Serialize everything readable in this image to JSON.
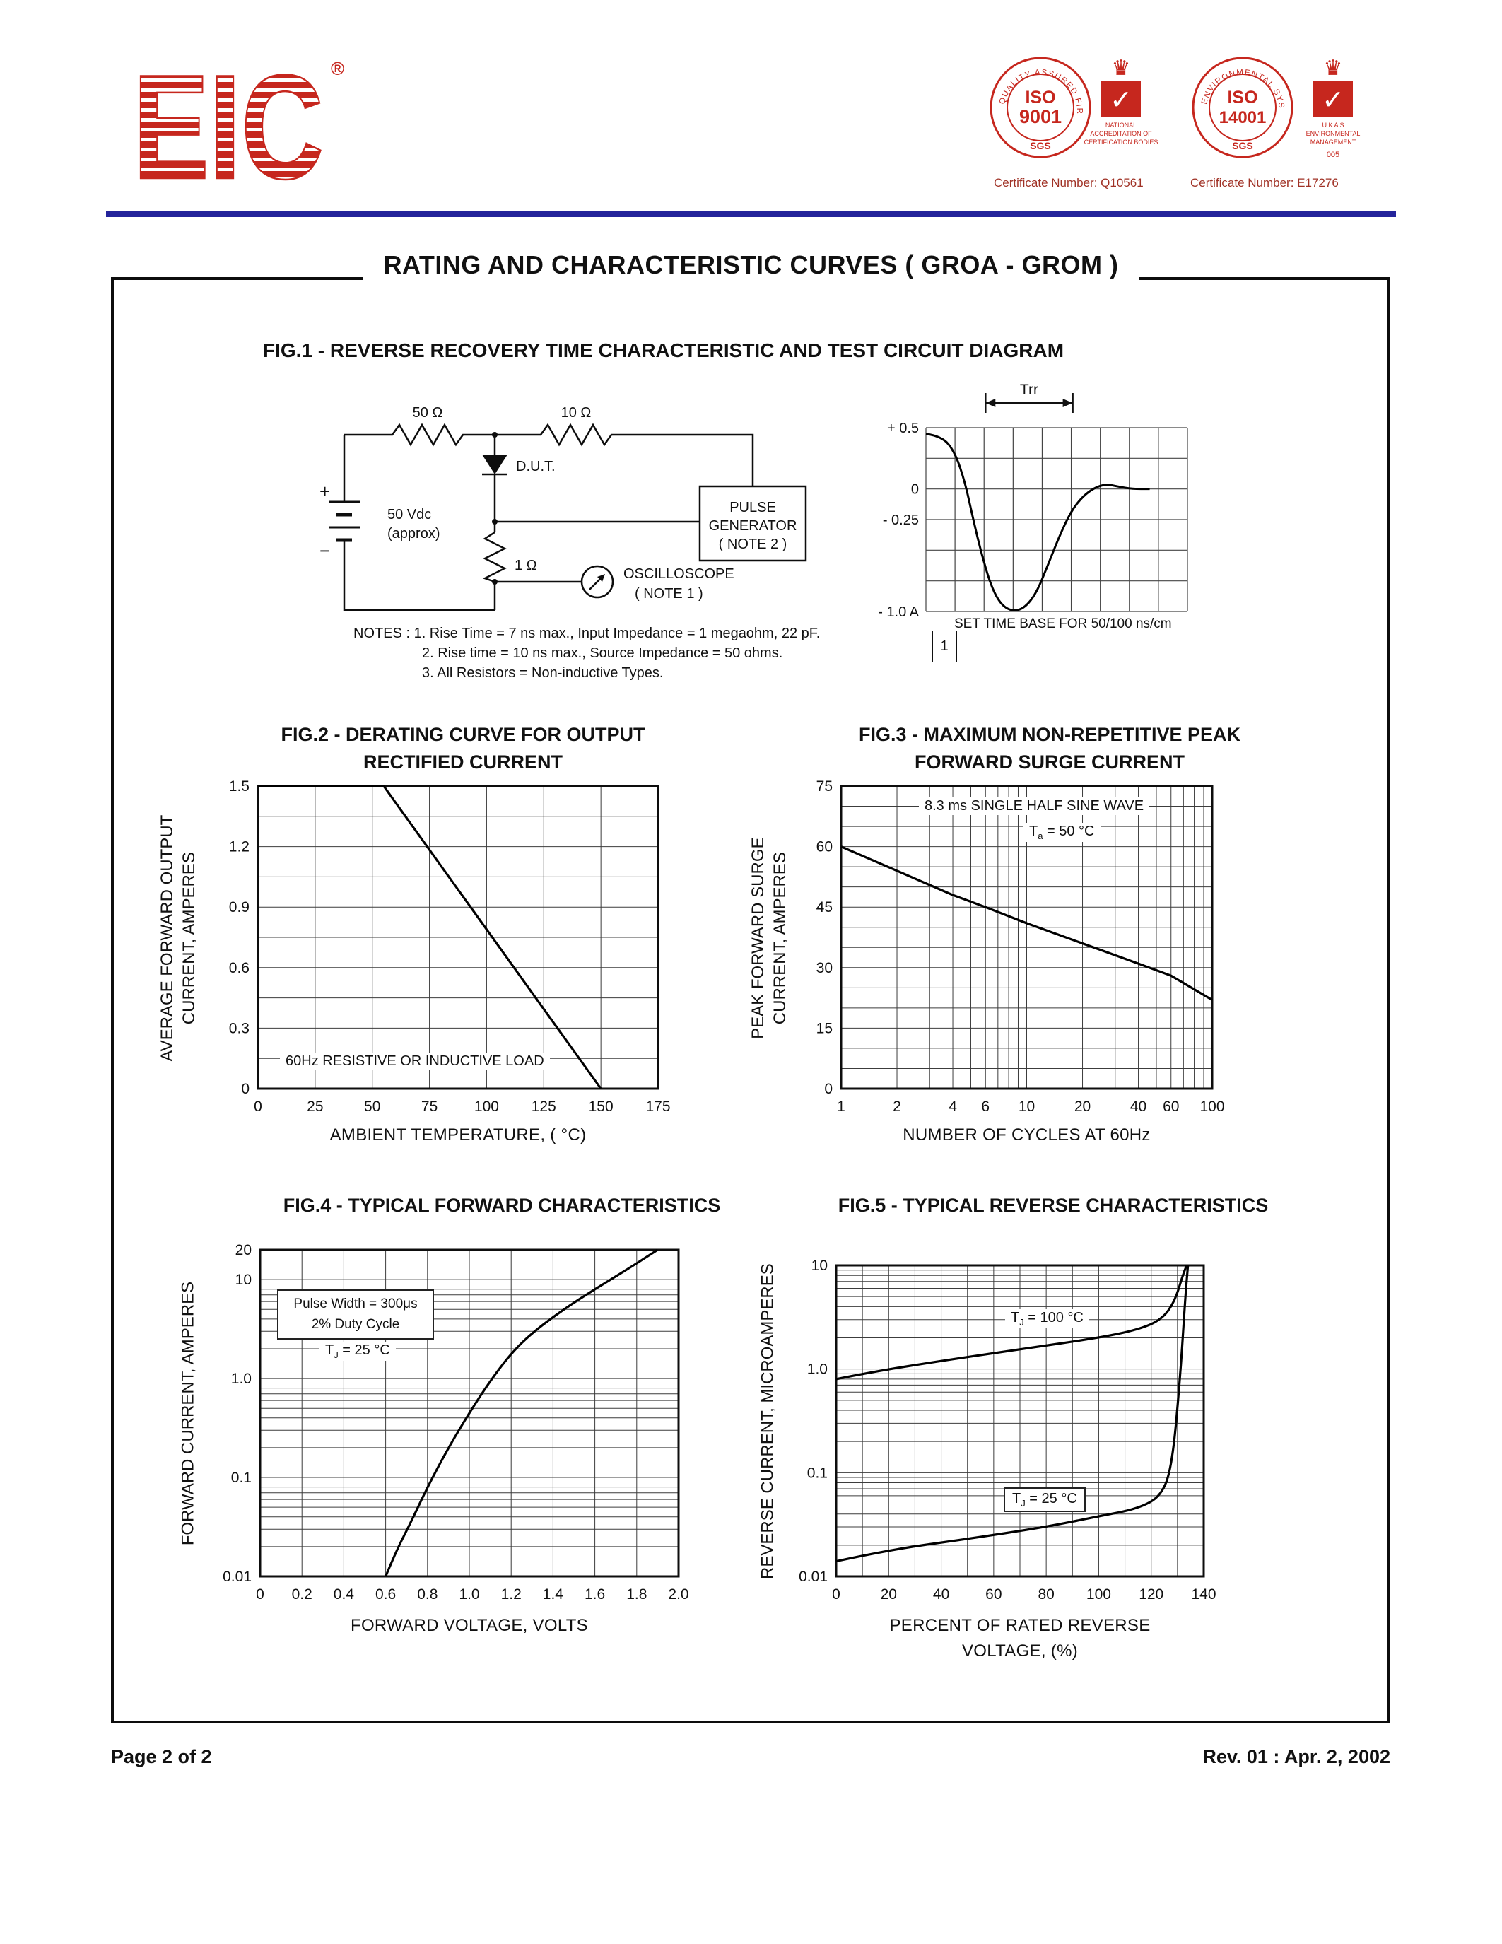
{
  "page": {
    "title": "RATING AND CHARACTERISTIC CURVES  ( GROA - GROM )",
    "footer_left": "Page 2 of 2",
    "footer_right": "Rev. 01 : Apr. 2, 2002"
  },
  "header": {
    "logo_text": "EIC",
    "logo_registered": "®",
    "accent_color": "#c6271e",
    "divider_color": "#24249b",
    "badges": [
      {
        "ring_text": "QUALITY ASSURED FIRM",
        "iso": "ISO",
        "number": "9001",
        "org": "SGS",
        "crown": "♛",
        "check": "✓",
        "side_lines": [
          "NATIONAL",
          "ACCREDITATION OF",
          "CERTIFICATION BODIES"
        ],
        "cert": "Certificate Number: Q10561"
      },
      {
        "ring_text": "ENVIRONMENTAL SYSTEM",
        "iso": "ISO",
        "number": "14001",
        "org": "SGS",
        "crown": "♛",
        "check": "✓",
        "side_lines": [
          "U K A S",
          "ENVIRONMENTAL",
          "MANAGEMENT"
        ],
        "foot": "005",
        "cert": "Certificate Number: E17276"
      }
    ]
  },
  "fig1": {
    "title": "FIG.1 - REVERSE RECOVERY TIME CHARACTERISTIC AND TEST CIRCUIT DIAGRAM",
    "circuit": {
      "r_source": "50 Ω",
      "r_series": "10 Ω",
      "dut": "D.U.T.",
      "supply_plus": "+",
      "supply_minus": "−",
      "supply_v": "50 Vdc",
      "supply_approx": "(approx)",
      "r_sense": "1 Ω",
      "scope_line1": "OSCILLOSCOPE",
      "scope_line2": "( NOTE 1 )",
      "pulse_line1": "PULSE",
      "pulse_line2": "GENERATOR",
      "pulse_line3": "( NOTE 2 )"
    },
    "notes": [
      "NOTES :  1. Rise Time = 7 ns max., Input Impedance = 1 megaohm, 22 pF.",
      "2. Rise time = 10 ns max., Source Impedance = 50 ohms.",
      "3. All Resistors = Non-inductive Types."
    ],
    "waveform": {
      "trr_label": "Trr",
      "trr_span": [
        2.05,
        5.05
      ],
      "cols": 9,
      "rows": 6,
      "ymax": 0.5,
      "ymin": -1.0,
      "y_labels": [
        {
          "text": "+ 0.5",
          "v": 0.5
        },
        {
          "text": "0",
          "v": 0
        },
        {
          "text": "- 0.25",
          "v": -0.25
        },
        {
          "text": "- 1.0 A",
          "v": -1.0
        }
      ],
      "points": [
        [
          0,
          0.45
        ],
        [
          0.55,
          0.43
        ],
        [
          1.0,
          0.3
        ],
        [
          1.35,
          0.05
        ],
        [
          1.6,
          -0.22
        ],
        [
          1.9,
          -0.52
        ],
        [
          2.25,
          -0.8
        ],
        [
          2.6,
          -0.95
        ],
        [
          3.0,
          -1.0
        ],
        [
          3.4,
          -0.97
        ],
        [
          3.8,
          -0.85
        ],
        [
          4.2,
          -0.62
        ],
        [
          4.6,
          -0.38
        ],
        [
          5.0,
          -0.18
        ],
        [
          5.4,
          -0.06
        ],
        [
          5.8,
          0.01
        ],
        [
          6.2,
          0.04
        ],
        [
          6.6,
          0.02
        ],
        [
          7.1,
          0.0
        ],
        [
          7.7,
          0.0
        ]
      ],
      "caption": "SET TIME BASE FOR  50/100 ns/cm",
      "corner_label": "1"
    }
  },
  "chart_data": [
    {
      "id": "fig2",
      "type": "line",
      "title": "FIG.2 - DERATING CURVE FOR OUTPUT RECTIFIED CURRENT",
      "title_lines": [
        "FIG.2 - DERATING CURVE FOR OUTPUT",
        "RECTIFIED CURRENT"
      ],
      "xlabel": "AMBIENT TEMPERATURE, ( °C)",
      "ylabel": "AVERAGE FORWARD OUTPUT CURRENT, AMPERES",
      "ylabel_lines": [
        "AVERAGE FORWARD OUTPUT",
        "CURRENT, AMPERES"
      ],
      "x_scale": "linear",
      "y_scale": "linear",
      "xlim": [
        0,
        175
      ],
      "ylim": [
        0,
        1.5
      ],
      "x_minor": 25,
      "y_minor": 0.15,
      "x_ticks": [
        0,
        25,
        50,
        75,
        100,
        125,
        150,
        175
      ],
      "x_tick_labels": [
        "0",
        "25",
        "50",
        "75",
        "100",
        "125",
        "150",
        "175"
      ],
      "y_ticks": [
        0,
        0.3,
        0.6,
        0.9,
        1.2,
        1.5
      ],
      "y_tick_labels": [
        "0",
        "0.3",
        "0.6",
        "0.9",
        "1.2",
        "1.5"
      ],
      "annotation": "60Hz RESISTIVE OR INDUCTIVE LOAD",
      "series": [
        {
          "name": "derating",
          "x": [
            0,
            55,
            150
          ],
          "y": [
            1.5,
            1.5,
            0
          ]
        }
      ]
    },
    {
      "id": "fig3",
      "type": "line",
      "title": "FIG.3 - MAXIMUM NON-REPETITIVE PEAK FORWARD SURGE CURRENT",
      "title_lines": [
        "FIG.3 - MAXIMUM NON-REPETITIVE PEAK",
        "FORWARD SURGE CURRENT"
      ],
      "xlabel": "NUMBER OF CYCLES AT 60Hz",
      "ylabel": "PEAK FORWARD SURGE CURRENT, AMPERES",
      "ylabel_lines": [
        "PEAK FORWARD SURGE",
        "CURRENT, AMPERES"
      ],
      "x_scale": "log",
      "y_scale": "linear",
      "xlim": [
        1,
        100
      ],
      "ylim": [
        0,
        75
      ],
      "y_minor": 5,
      "x_ticks": [
        1,
        2,
        4,
        6,
        10,
        20,
        40,
        60,
        100
      ],
      "x_tick_labels": [
        "1",
        "2",
        "4",
        "6",
        "10",
        "20",
        "40",
        "60",
        "100"
      ],
      "y_ticks": [
        0,
        15,
        30,
        45,
        60,
        75
      ],
      "y_tick_labels": [
        "0",
        "15",
        "30",
        "45",
        "60",
        "75"
      ],
      "annotation": "8.3 ms SINGLE HALF SINE WAVE",
      "annotation2": {
        "t": "T",
        "sub": "a",
        "rest": " = 50 °C"
      },
      "series": [
        {
          "name": "surge current",
          "x": [
            1,
            2,
            4,
            6,
            10,
            20,
            40,
            60,
            100
          ],
          "y": [
            60,
            54,
            48,
            45,
            41,
            36,
            31,
            28,
            22
          ]
        }
      ]
    },
    {
      "id": "fig4",
      "type": "line",
      "title": "FIG.4 - TYPICAL FORWARD  CHARACTERISTICS",
      "xlabel": "FORWARD VOLTAGE, VOLTS",
      "ylabel": "FORWARD CURRENT, AMPERES",
      "ylabel_lines": [
        "FORWARD CURRENT, AMPERES"
      ],
      "x_scale": "linear",
      "y_scale": "log",
      "xlim": [
        0,
        2.0
      ],
      "ylim": [
        0.01,
        20
      ],
      "x_minor": 0.2,
      "x_ticks": [
        0,
        0.2,
        0.4,
        0.6,
        0.8,
        1.0,
        1.2,
        1.4,
        1.6,
        1.8,
        2.0
      ],
      "x_tick_labels": [
        "0",
        "0.2",
        "0.4",
        "0.6",
        "0.8",
        "1.0",
        "1.2",
        "1.4",
        "1.6",
        "1.8",
        "2.0"
      ],
      "y_ticks": [
        20,
        10,
        1.0,
        0.1,
        0.01
      ],
      "y_tick_labels": [
        "20",
        "10",
        "1.0",
        "0.1",
        "0.01"
      ],
      "box_lines": [
        "Pulse Width = 300μs",
        "2% Duty Cycle"
      ],
      "tj": {
        "t": "T",
        "sub": "J",
        "rest": " = 25 °C"
      },
      "series": [
        {
          "name": "forward characteristic",
          "x": [
            0.6,
            0.65,
            0.72,
            0.8,
            0.9,
            1.0,
            1.1,
            1.2,
            1.3,
            1.45,
            1.6,
            1.75,
            1.9
          ],
          "y": [
            0.01,
            0.018,
            0.035,
            0.08,
            0.2,
            0.45,
            0.95,
            1.8,
            2.9,
            5,
            8,
            12.5,
            20
          ]
        }
      ]
    },
    {
      "id": "fig5",
      "type": "line",
      "title": "FIG.5 - TYPICAL REVERSE CHARACTERISTICS",
      "xlabel": "PERCENT OF RATED REVERSE VOLTAGE, (%)",
      "xlabel_lines": [
        "PERCENT OF RATED REVERSE",
        "VOLTAGE, (%)"
      ],
      "ylabel": "REVERSE CURRENT, MICROAMPERES",
      "ylabel_lines": [
        "REVERSE CURRENT, MICROAMPERES"
      ],
      "x_scale": "linear",
      "y_scale": "log",
      "xlim": [
        0,
        140
      ],
      "ylim": [
        0.01,
        10
      ],
      "x_minor": 10,
      "x_ticks": [
        0,
        20,
        40,
        60,
        80,
        100,
        120,
        140
      ],
      "x_tick_labels": [
        "0",
        "20",
        "40",
        "60",
        "80",
        "100",
        "120",
        "140"
      ],
      "y_ticks": [
        10,
        1.0,
        0.1,
        0.01
      ],
      "y_tick_labels": [
        "10",
        "1.0",
        "0.1",
        "0.01"
      ],
      "tj_hot": {
        "t": "T",
        "sub": "J",
        "rest": " = 100 °C"
      },
      "tj_cold": {
        "t": "T",
        "sub": "J",
        "rest": " = 25 °C"
      },
      "series": [
        {
          "name": "TJ = 100 °C",
          "x": [
            0,
            15,
            40,
            70,
            100,
            115,
            124,
            129,
            132,
            133.5
          ],
          "y": [
            0.8,
            0.95,
            1.2,
            1.55,
            2.0,
            2.4,
            3.0,
            4.5,
            8,
            10
          ]
        },
        {
          "name": "TJ = 25 °C",
          "x": [
            0,
            20,
            50,
            80,
            100,
            115,
            124,
            128,
            131,
            133,
            134
          ],
          "y": [
            0.014,
            0.018,
            0.023,
            0.03,
            0.038,
            0.045,
            0.06,
            0.12,
            0.8,
            5,
            10
          ]
        }
      ]
    }
  ]
}
